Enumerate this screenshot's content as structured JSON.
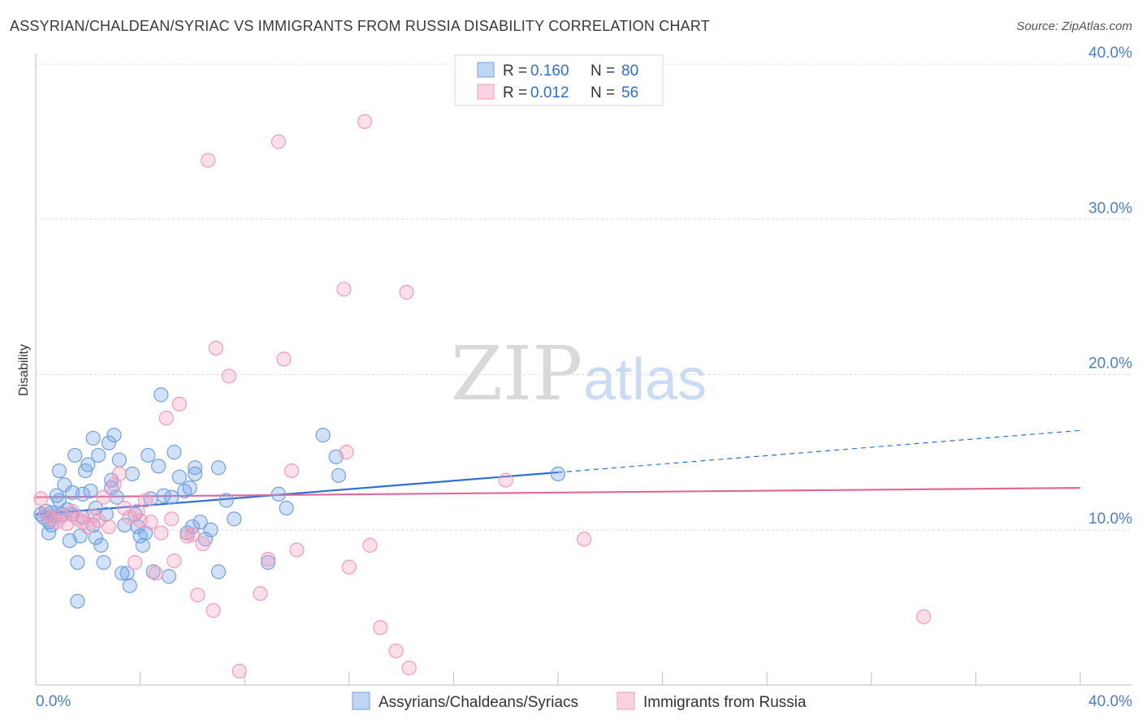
{
  "title": "ASSYRIAN/CHALDEAN/SYRIAC VS IMMIGRANTS FROM RUSSIA DISABILITY CORRELATION CHART",
  "source": "Source: ZipAtlas.com",
  "watermark": {
    "part1": "ZIP",
    "part2": "atlas"
  },
  "chart_data": {
    "type": "scatter",
    "title": "ASSYRIAN/CHALDEAN/SYRIAC VS IMMIGRANTS FROM RUSSIA DISABILITY CORRELATION CHART",
    "xlabel": "",
    "ylabel": "Disability",
    "xlim": [
      0,
      40
    ],
    "ylim": [
      0,
      40
    ],
    "x_tick_labels": [
      "0.0%",
      "40.0%"
    ],
    "y_ticks": [
      10,
      20,
      30,
      40
    ],
    "y_tick_labels": [
      "10.0%",
      "20.0%",
      "30.0%",
      "40.0%"
    ],
    "grid": true,
    "legend_position": "top-center",
    "stats": [
      {
        "r_label": "R =",
        "r_value": "0.160",
        "n_label": "N =",
        "n_value": "80",
        "color": "#6fa1e6"
      },
      {
        "r_label": "R =",
        "r_value": "0.012",
        "n_label": "N =",
        "n_value": "56",
        "color": "#f59ab8"
      }
    ],
    "series": [
      {
        "name": "Assyrians/Chaldeans/Syriacs",
        "color": "#6fa1e6",
        "line_color": "#2a6fd4",
        "trend": {
          "x0": 0,
          "y0": 11.0,
          "x1": 20,
          "y1": 13.7,
          "dash_to_x": 40,
          "dash_to_y": 16.4
        },
        "points": [
          [
            0.2,
            11.0
          ],
          [
            0.3,
            10.8
          ],
          [
            0.4,
            11.2
          ],
          [
            0.5,
            10.5
          ],
          [
            0.6,
            11.1
          ],
          [
            0.7,
            10.9
          ],
          [
            0.8,
            12.2
          ],
          [
            0.9,
            13.8
          ],
          [
            1.0,
            11.0
          ],
          [
            1.1,
            12.9
          ],
          [
            1.2,
            11.3
          ],
          [
            1.3,
            9.3
          ],
          [
            1.4,
            12.4
          ],
          [
            1.5,
            14.8
          ],
          [
            1.6,
            7.9
          ],
          [
            1.7,
            9.6
          ],
          [
            1.8,
            12.3
          ],
          [
            1.9,
            13.8
          ],
          [
            2.0,
            14.2
          ],
          [
            2.1,
            12.5
          ],
          [
            2.2,
            15.9
          ],
          [
            2.3,
            11.4
          ],
          [
            2.4,
            14.8
          ],
          [
            2.5,
            9.0
          ],
          [
            2.6,
            7.9
          ],
          [
            2.7,
            11.0
          ],
          [
            2.8,
            15.6
          ],
          [
            2.9,
            13.2
          ],
          [
            3.0,
            16.1
          ],
          [
            3.1,
            12.1
          ],
          [
            3.2,
            14.5
          ],
          [
            3.3,
            7.2
          ],
          [
            3.4,
            10.3
          ],
          [
            3.6,
            6.4
          ],
          [
            3.7,
            13.6
          ],
          [
            3.9,
            10.2
          ],
          [
            4.0,
            9.6
          ],
          [
            4.1,
            9.0
          ],
          [
            4.3,
            14.8
          ],
          [
            4.4,
            12.0
          ],
          [
            4.5,
            7.3
          ],
          [
            4.7,
            14.1
          ],
          [
            4.8,
            18.7
          ],
          [
            4.9,
            12.2
          ],
          [
            5.1,
            7.0
          ],
          [
            5.3,
            15.0
          ],
          [
            5.5,
            13.4
          ],
          [
            5.7,
            12.5
          ],
          [
            5.8,
            9.8
          ],
          [
            6.0,
            10.2
          ],
          [
            6.1,
            13.6
          ],
          [
            6.3,
            10.5
          ],
          [
            6.5,
            9.4
          ],
          [
            6.7,
            10.0
          ],
          [
            7.0,
            7.3
          ],
          [
            7.3,
            11.9
          ],
          [
            7.0,
            14.0
          ],
          [
            7.6,
            10.7
          ],
          [
            8.9,
            7.9
          ],
          [
            9.3,
            12.3
          ],
          [
            9.6,
            11.4
          ],
          [
            11.0,
            16.1
          ],
          [
            11.5,
            14.7
          ],
          [
            11.6,
            13.5
          ],
          [
            20.0,
            13.6
          ],
          [
            5.2,
            12.1
          ],
          [
            2.3,
            9.5
          ],
          [
            1.6,
            5.4
          ],
          [
            0.6,
            10.3
          ],
          [
            3.8,
            11.0
          ],
          [
            2.9,
            12.7
          ],
          [
            1.4,
            11.0
          ],
          [
            2.2,
            10.3
          ],
          [
            6.1,
            14.0
          ],
          [
            4.2,
            9.8
          ],
          [
            0.9,
            11.9
          ],
          [
            3.5,
            7.2
          ],
          [
            0.5,
            9.8
          ],
          [
            1.8,
            10.8
          ],
          [
            5.9,
            12.7
          ]
        ]
      },
      {
        "name": "Immigrants from Russia",
        "color": "#f59ab8",
        "line_color": "#e0699a",
        "trend": {
          "x0": 0,
          "y0": 12.1,
          "x1": 40,
          "y1": 12.7
        },
        "points": [
          [
            0.2,
            12.0
          ],
          [
            0.4,
            11.0
          ],
          [
            0.6,
            10.7
          ],
          [
            0.8,
            10.5
          ],
          [
            1.0,
            10.9
          ],
          [
            1.2,
            10.4
          ],
          [
            1.4,
            11.2
          ],
          [
            1.6,
            10.7
          ],
          [
            1.8,
            10.5
          ],
          [
            2.0,
            10.2
          ],
          [
            2.2,
            10.9
          ],
          [
            2.4,
            10.6
          ],
          [
            2.6,
            12.1
          ],
          [
            2.8,
            10.2
          ],
          [
            3.0,
            12.9
          ],
          [
            3.2,
            13.6
          ],
          [
            3.4,
            11.4
          ],
          [
            3.6,
            10.8
          ],
          [
            3.8,
            7.9
          ],
          [
            4.0,
            10.6
          ],
          [
            4.2,
            11.9
          ],
          [
            4.4,
            10.5
          ],
          [
            4.6,
            7.2
          ],
          [
            4.8,
            9.8
          ],
          [
            5.0,
            17.2
          ],
          [
            5.2,
            10.7
          ],
          [
            5.3,
            8.0
          ],
          [
            5.5,
            18.1
          ],
          [
            5.8,
            9.6
          ],
          [
            6.0,
            9.7
          ],
          [
            6.2,
            5.8
          ],
          [
            6.4,
            9.1
          ],
          [
            6.6,
            33.8
          ],
          [
            6.8,
            4.8
          ],
          [
            6.9,
            21.7
          ],
          [
            7.4,
            19.9
          ],
          [
            7.8,
            0.9
          ],
          [
            8.6,
            5.9
          ],
          [
            8.9,
            8.1
          ],
          [
            9.3,
            35.0
          ],
          [
            9.5,
            21.0
          ],
          [
            9.8,
            13.8
          ],
          [
            10.0,
            8.7
          ],
          [
            11.8,
            25.5
          ],
          [
            11.9,
            15.0
          ],
          [
            12.0,
            7.6
          ],
          [
            12.6,
            36.3
          ],
          [
            12.8,
            9.0
          ],
          [
            13.2,
            3.7
          ],
          [
            13.8,
            2.2
          ],
          [
            14.3,
            1.1
          ],
          [
            14.2,
            25.3
          ],
          [
            18.0,
            13.2
          ],
          [
            21.0,
            9.4
          ],
          [
            34.0,
            4.4
          ],
          [
            3.9,
            11.2
          ]
        ]
      }
    ]
  }
}
